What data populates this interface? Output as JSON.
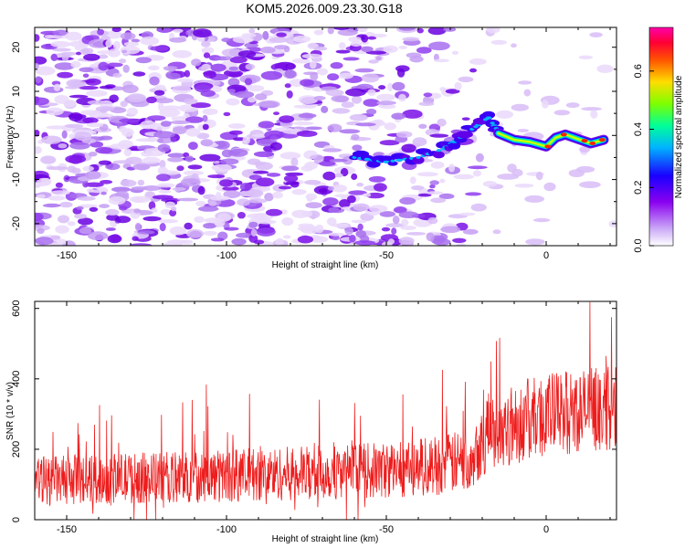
{
  "title": "KOM5.2026.009.23.30.G18",
  "chart_data": [
    {
      "type": "heatmap",
      "title": "KOM5.2026.009.23.30.G18",
      "xlabel": "Height of straight line (km)",
      "ylabel": "Frequency (Hz)",
      "xlim": [
        -160,
        22
      ],
      "ylim": [
        -25,
        24.5
      ],
      "xticks": [
        -150,
        -100,
        -50,
        0
      ],
      "yticks": [
        -20,
        -10,
        0,
        10,
        20
      ],
      "colorbar": {
        "label": "Normalized spectral amplitude",
        "range": [
          0,
          0.75
        ],
        "ticks": [
          0.0,
          0.2,
          0.4,
          0.6
        ],
        "tick_labels": [
          "0.0",
          "0.2",
          "0.4",
          "0.6"
        ],
        "colormap": [
          "#ffffff",
          "#9a1cf0",
          "#0000ff",
          "#00e6ff",
          "#00ff66",
          "#ccff00",
          "#ff8800",
          "#ff0000",
          "#ff00aa"
        ]
      },
      "structure": {
        "diffuse_noise_x_range": [
          -160,
          -20
        ],
        "converging_trail": [
          {
            "x": -60,
            "y": -5
          },
          {
            "x": -50,
            "y": -6
          },
          {
            "x": -40,
            "y": -5
          },
          {
            "x": -32,
            "y": -3
          },
          {
            "x": -28,
            "y": -1
          },
          {
            "x": -22,
            "y": 2
          },
          {
            "x": -18,
            "y": 4
          },
          {
            "x": -15,
            "y": 1
          }
        ],
        "strong_ridge": [
          {
            "x": -15,
            "y": 0.5
          },
          {
            "x": -10,
            "y": -1
          },
          {
            "x": -5,
            "y": -1.5
          },
          {
            "x": 0,
            "y": -2.5
          },
          {
            "x": 3,
            "y": -0.5
          },
          {
            "x": 6,
            "y": 0.2
          },
          {
            "x": 10,
            "y": -0.8
          },
          {
            "x": 14,
            "y": -1.8
          },
          {
            "x": 18,
            "y": -1
          }
        ]
      }
    },
    {
      "type": "line",
      "xlabel": "Height of straight line (km)",
      "ylabel": "SNR (10 * v/v)",
      "xlim": [
        -160,
        22
      ],
      "ylim": [
        0,
        620
      ],
      "xticks": [
        -150,
        -100,
        -50,
        0
      ],
      "yticks": [
        0,
        200,
        400,
        600
      ],
      "line_color": "#ff0000",
      "trend": [
        {
          "x": -160,
          "mean": 110,
          "amp": 70
        },
        {
          "x": -100,
          "mean": 125,
          "amp": 75
        },
        {
          "x": -50,
          "mean": 140,
          "amp": 80
        },
        {
          "x": -25,
          "mean": 165,
          "amp": 90
        },
        {
          "x": -18,
          "mean": 250,
          "amp": 110
        },
        {
          "x": 0,
          "mean": 300,
          "amp": 120
        },
        {
          "x": 22,
          "mean": 320,
          "amp": 120
        }
      ]
    }
  ]
}
